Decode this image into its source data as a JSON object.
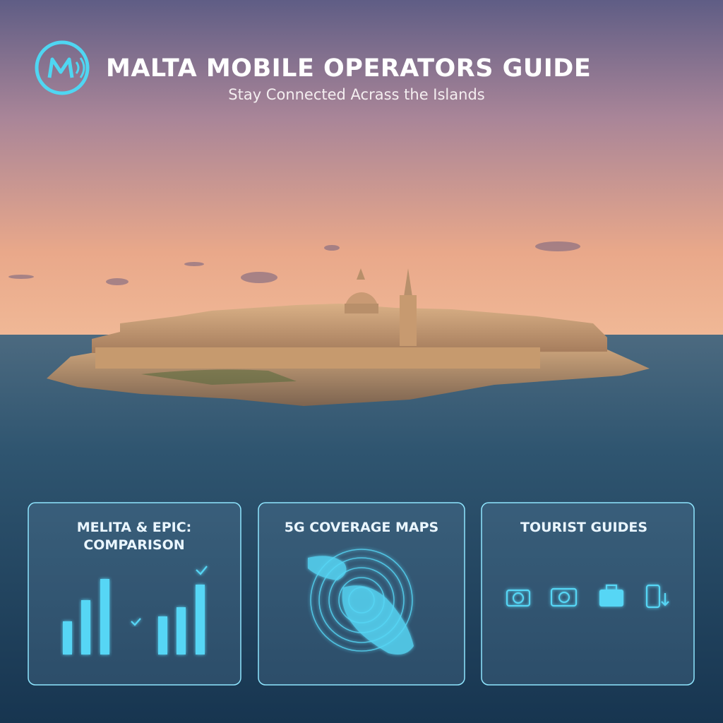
{
  "header": {
    "title": "MALTA MOBILE OPERATORS GUIDE",
    "subtitle": "Stay Connected Acrass the Islands"
  },
  "cards": [
    {
      "title_lines": [
        "MELITA & EPIC:",
        "COMPARISON"
      ]
    },
    {
      "title_lines": [
        "5G COVERAGE MAPS"
      ]
    },
    {
      "title_lines": [
        "TOURIST GUIDES"
      ]
    }
  ]
}
